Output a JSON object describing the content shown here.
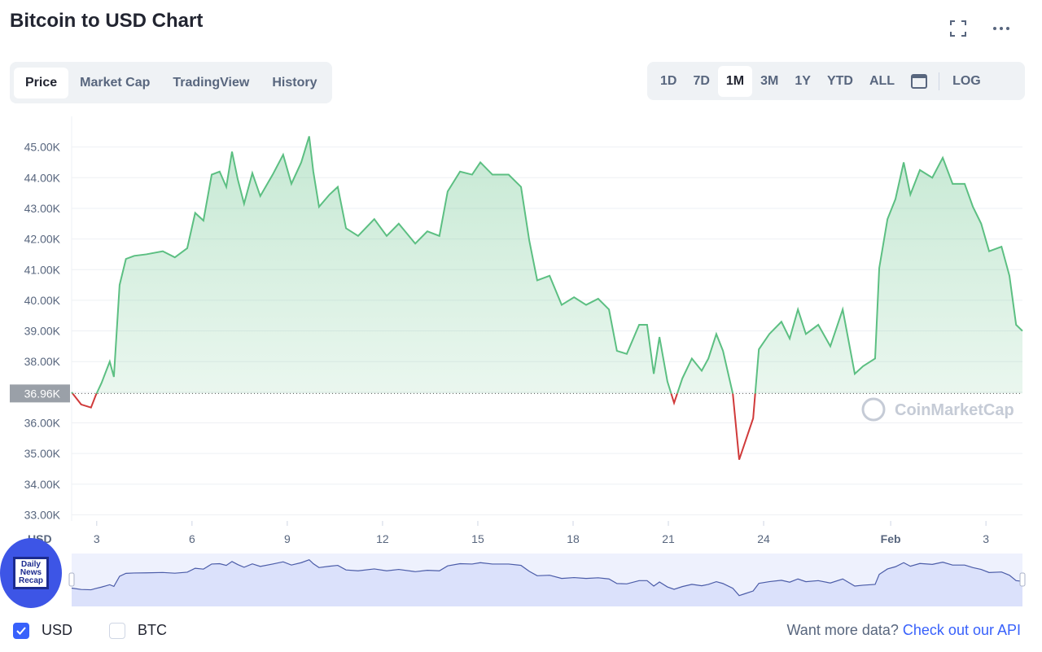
{
  "header": {
    "title": "Bitcoin to USD Chart"
  },
  "tabs": [
    "Price",
    "Market Cap",
    "TradingView",
    "History"
  ],
  "ranges": [
    "1D",
    "7D",
    "1M",
    "3M",
    "1Y",
    "YTD",
    "ALL"
  ],
  "log_button": "LOG",
  "badge": [
    "Daily",
    "News",
    "Recap"
  ],
  "footer": {
    "currencies": [
      "USD",
      "BTC"
    ],
    "prompt": "Want more data?",
    "link": "Check out our API"
  },
  "chart_data": {
    "type": "line",
    "xlabel": "USD",
    "watermark": "CoinMarketCap",
    "grid": true,
    "color_up": "#5cbf82",
    "color_down": "#d03a3a",
    "reference": {
      "value": 36960,
      "label": "36.96K"
    },
    "xlim": [
      2.21,
      32.15
    ],
    "xticks": [
      3,
      6,
      9,
      12,
      15,
      18,
      21,
      24,
      {
        "value": 28,
        "label": "Feb"
      },
      {
        "value": 31,
        "label": "3"
      }
    ],
    "ylim": [
      32800,
      46000
    ],
    "yticks": [
      {
        "value": 33000,
        "label": "33.00K"
      },
      {
        "value": 34000,
        "label": "34.00K"
      },
      {
        "value": 35000,
        "label": "35.00K"
      },
      {
        "value": 36000,
        "label": "36.00K"
      },
      {
        "value": 37000,
        "label": "37.00K"
      },
      {
        "value": 38000,
        "label": "38.00K"
      },
      {
        "value": 39000,
        "label": "39.00K"
      },
      {
        "value": 40000,
        "label": "40.00K"
      },
      {
        "value": 41000,
        "label": "41.00K"
      },
      {
        "value": 42000,
        "label": "42.00K"
      },
      {
        "value": 43000,
        "label": "43.00K"
      },
      {
        "value": 44000,
        "label": "44.00K"
      },
      {
        "value": 45000,
        "label": "45.00K"
      }
    ],
    "x": [
      2.21,
      2.51,
      2.82,
      2.97,
      3.15,
      3.41,
      3.54,
      3.72,
      3.92,
      4.18,
      4.56,
      5.08,
      5.46,
      5.85,
      6.1,
      6.36,
      6.62,
      6.87,
      7.08,
      7.26,
      7.44,
      7.64,
      7.9,
      8.15,
      8.54,
      8.87,
      9.13,
      9.44,
      9.69,
      9.82,
      10.0,
      10.33,
      10.59,
      10.85,
      11.23,
      11.74,
      12.13,
      12.51,
      13.03,
      13.41,
      13.79,
      14.05,
      14.44,
      14.82,
      15.08,
      15.46,
      15.97,
      16.36,
      16.62,
      16.87,
      17.26,
      17.64,
      18.03,
      18.41,
      18.79,
      19.13,
      19.38,
      19.69,
      20.08,
      20.33,
      20.54,
      20.72,
      20.97,
      21.18,
      21.44,
      21.74,
      22.05,
      22.26,
      22.51,
      22.72,
      23.03,
      23.23,
      23.41,
      23.67,
      23.85,
      24.18,
      24.56,
      24.82,
      25.08,
      25.33,
      25.72,
      26.1,
      26.49,
      26.87,
      27.13,
      27.51,
      27.64,
      27.9,
      28.15,
      28.41,
      28.62,
      28.92,
      29.31,
      29.64,
      29.95,
      30.33,
      30.59,
      30.85,
      31.1,
      31.49,
      31.74,
      31.95,
      32.15
    ],
    "series": [
      {
        "name": "USD",
        "values": [
          37000,
          36600,
          36500,
          36900,
          37300,
          38000,
          37500,
          40500,
          41350,
          41450,
          41500,
          41600,
          41400,
          41700,
          42850,
          42600,
          44100,
          44200,
          43700,
          44850,
          43950,
          43150,
          44150,
          43400,
          44100,
          44750,
          43800,
          44500,
          45350,
          44200,
          43050,
          43450,
          43700,
          42350,
          42100,
          42650,
          42100,
          42500,
          41850,
          42250,
          42100,
          43550,
          44200,
          44100,
          44500,
          44100,
          44100,
          43700,
          41950,
          40650,
          40800,
          39850,
          40100,
          39850,
          40050,
          39700,
          38350,
          38250,
          39200,
          39200,
          37600,
          38800,
          37350,
          36650,
          37450,
          38100,
          37700,
          38100,
          38900,
          38350,
          36950,
          34800,
          35350,
          36150,
          38400,
          38900,
          39300,
          38750,
          39700,
          38900,
          39200,
          38500,
          39700,
          37600,
          37850,
          38100,
          41050,
          42650,
          43300,
          44500,
          43450,
          44250,
          44000,
          44650,
          43800,
          43800,
          43050,
          42500,
          41600,
          41750,
          40800,
          39200,
          39000
        ]
      }
    ]
  }
}
